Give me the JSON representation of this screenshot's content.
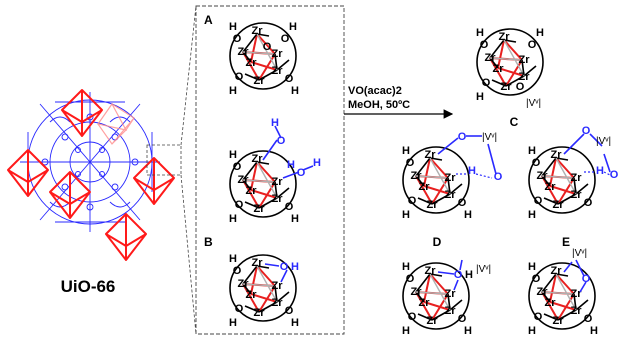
{
  "mof": {
    "name": "UiO-66"
  },
  "panels": {
    "a": "A",
    "b": "B",
    "c": "C",
    "d": "D",
    "e": "E"
  },
  "reaction": {
    "reagent": "VO(acac)2",
    "conditions": "MeOH, 50ºC"
  },
  "labels": {
    "zr": "Zr",
    "o": "O",
    "h": "H",
    "v": "|Vᵛ|"
  },
  "colors": {
    "octahedron": "#ff1a1a",
    "linker": "#2a2aff",
    "bond": "#000000",
    "inner_bond": "#e82020"
  },
  "icons": {
    "zr_cluster": "zr6-oxo-cluster-icon",
    "vanadium_site": "vanadyl-icon"
  }
}
